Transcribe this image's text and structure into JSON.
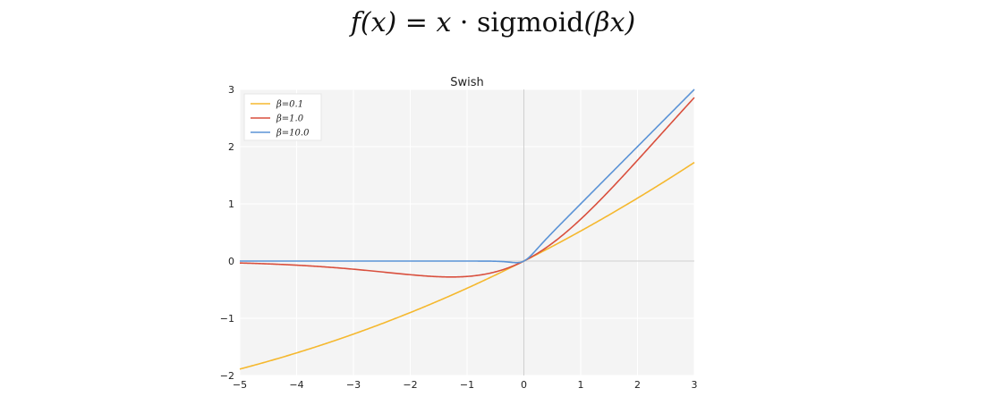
{
  "formula": {
    "lhs": "f(x)",
    "eq": " = ",
    "x": "x",
    "dot": " · ",
    "fn": "sigmoid",
    "arg": "(βx)"
  },
  "chart_data": {
    "type": "line",
    "title": "Swish",
    "xlabel": "",
    "ylabel": "",
    "xlim": [
      -5,
      3
    ],
    "ylim": [
      -2,
      3
    ],
    "xticks": [
      -5,
      -4,
      -3,
      -2,
      -1,
      0,
      1,
      2,
      3
    ],
    "xtick_labels": [
      "−5",
      "−4",
      "−3",
      "−2",
      "−1",
      "0",
      "1",
      "2",
      "3"
    ],
    "yticks": [
      -2,
      -1,
      0,
      1,
      2,
      3
    ],
    "ytick_labels": [
      "−2",
      "−1",
      "0",
      "1",
      "2",
      "3"
    ],
    "grid": true,
    "legend_position": "top-left",
    "function": "x * sigmoid(beta * x)",
    "series": [
      {
        "name": "β = 0.1",
        "label": "β=0.1",
        "beta": 0.1,
        "color": "#f5b82e",
        "x": [
          -5,
          -4,
          -3,
          -2,
          -1,
          0,
          1,
          2,
          3
        ],
        "y": [
          -1.89,
          -1.6,
          -1.28,
          -0.9,
          -0.48,
          0,
          0.52,
          1.1,
          1.72
        ]
      },
      {
        "name": "β = 1.0",
        "label": "β=1.0",
        "beta": 1.0,
        "color": "#d94f3d",
        "x": [
          -5,
          -4,
          -3,
          -2,
          -1.28,
          -1,
          0,
          1,
          2,
          3
        ],
        "y": [
          -0.03,
          -0.07,
          -0.14,
          -0.24,
          -0.28,
          -0.27,
          0,
          0.73,
          1.76,
          2.86
        ]
      },
      {
        "name": "β = 10.0",
        "label": "β=10.0",
        "beta": 10.0,
        "color": "#5b93d6",
        "x": [
          -5,
          -1,
          -0.2,
          0,
          0.2,
          1,
          2,
          3
        ],
        "y": [
          0,
          0,
          -0.02,
          0,
          0.18,
          1.0,
          2.0,
          3.0
        ]
      }
    ]
  }
}
